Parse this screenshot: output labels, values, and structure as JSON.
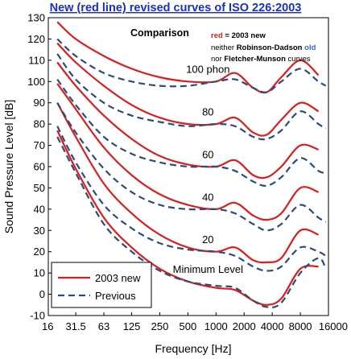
{
  "title": "New (red line) revised curves of ISO 226:2003",
  "comparison_box": {
    "heading": "Comparison",
    "line1_red": "red",
    "line1_rest": " = 2003 new",
    "line2_prefix": "neither ",
    "line2_bold": "Robinson-Dadson ",
    "line2_blue": "old",
    "line3_prefix": "nor ",
    "line3_bold": "Fletcher-Munson",
    "line3_suffix": " curves"
  },
  "colors": {
    "new": "#e11b1b",
    "old": "#2b4a7e",
    "title": "#1a2fc8",
    "comparison_red": "#e11b1b",
    "comparison_blue": "#3366cc",
    "frame": "#000000"
  },
  "legend": {
    "entries": [
      {
        "label": "2003 new",
        "style": "solid-red"
      },
      {
        "label": "Previous",
        "style": "dashed-blue"
      }
    ]
  },
  "chart_data": {
    "type": "line",
    "title": "New (red line) revised curves of ISO 226:2003",
    "xlabel": "Frequency [Hz]",
    "ylabel": "Sound Pressure Level [dB]",
    "x_scale": "log",
    "x_ticks": [
      16,
      31.5,
      63,
      125,
      250,
      500,
      1000,
      2000,
      4000,
      8000,
      16000
    ],
    "x_tick_labels": [
      "16",
      "31.5",
      "63",
      "125",
      "250",
      "500",
      "1000",
      "2000",
      "4000",
      "8000",
      "16000"
    ],
    "ylim": [
      -10,
      130
    ],
    "y_ticks": [
      -10,
      0,
      10,
      20,
      30,
      40,
      50,
      60,
      70,
      80,
      90,
      100,
      110,
      120,
      130
    ],
    "grid": false,
    "curve_labels": [
      {
        "text": "100 phon",
        "x": 1000,
        "y": 104
      },
      {
        "text": "80",
        "x": 1000,
        "y": 84
      },
      {
        "text": "60",
        "x": 1000,
        "y": 64
      },
      {
        "text": "40",
        "x": 1000,
        "y": 44
      },
      {
        "text": "20",
        "x": 1000,
        "y": 24
      },
      {
        "text": "Minimum Level",
        "x": 1000,
        "y": 10
      }
    ],
    "series": [
      {
        "name": "2003 new",
        "phon": 100,
        "x": [
          20,
          31.5,
          63,
          125,
          250,
          500,
          1000,
          1600,
          2500,
          3500,
          5000,
          8000,
          12500
        ],
        "y": [
          128,
          120,
          112,
          106,
          102,
          100,
          100,
          104,
          97,
          95,
          102,
          110,
          103
        ]
      },
      {
        "name": "2003 new",
        "phon": 80,
        "x": [
          20,
          31.5,
          63,
          125,
          250,
          500,
          1000,
          1600,
          2500,
          3500,
          5000,
          8000,
          12500
        ],
        "y": [
          118,
          109,
          98,
          89,
          83,
          80,
          80,
          83,
          76,
          75,
          82,
          90,
          86
        ]
      },
      {
        "name": "2003 new",
        "phon": 60,
        "x": [
          20,
          31.5,
          63,
          125,
          250,
          500,
          1000,
          1600,
          2500,
          3500,
          5000,
          8000,
          12500
        ],
        "y": [
          109,
          98,
          84,
          73,
          65,
          61,
          60,
          63,
          56,
          55,
          60,
          70,
          68
        ]
      },
      {
        "name": "2003 new",
        "phon": 40,
        "x": [
          20,
          31.5,
          63,
          125,
          250,
          500,
          1000,
          1600,
          2500,
          3500,
          5000,
          8000,
          12500
        ],
        "y": [
          99,
          87,
          69,
          56,
          47,
          42,
          40,
          43,
          37,
          35,
          38,
          50,
          48
        ]
      },
      {
        "name": "2003 new",
        "phon": 20,
        "x": [
          20,
          31.5,
          63,
          125,
          250,
          500,
          1000,
          1600,
          2500,
          3500,
          5000,
          8000,
          12500
        ],
        "y": [
          90,
          74,
          52,
          38,
          28,
          22,
          20,
          22,
          16,
          15,
          17,
          30,
          28
        ]
      },
      {
        "name": "2003 new",
        "phon": 0,
        "x": [
          20,
          31.5,
          63,
          125,
          250,
          500,
          1000,
          1600,
          2500,
          3500,
          5000,
          8000,
          12500
        ],
        "y": [
          77,
          59,
          36,
          22,
          12,
          6,
          3,
          2,
          -3,
          -5,
          -2,
          12,
          13
        ]
      },
      {
        "name": "Previous",
        "phon": 100,
        "x": [
          20,
          31.5,
          63,
          125,
          250,
          500,
          1000,
          1600,
          2500,
          3500,
          5000,
          8000,
          12500,
          15000
        ],
        "y": [
          120,
          112,
          104,
          100,
          98,
          98,
          100,
          101,
          97,
          95,
          100,
          106,
          100,
          98
        ]
      },
      {
        "name": "Previous",
        "phon": 80,
        "x": [
          20,
          31.5,
          63,
          125,
          250,
          500,
          1000,
          1600,
          2500,
          3500,
          5000,
          8000,
          12500,
          15000
        ],
        "y": [
          113,
          101,
          90,
          84,
          81,
          79,
          80,
          79,
          74,
          73,
          77,
          86,
          80,
          78
        ]
      },
      {
        "name": "Previous",
        "phon": 60,
        "x": [
          20,
          31.5,
          63,
          125,
          250,
          500,
          1000,
          1600,
          2500,
          3500,
          5000,
          8000,
          12500,
          15000
        ],
        "y": [
          101,
          89,
          74,
          66,
          62,
          60,
          60,
          58,
          53,
          51,
          55,
          64,
          58,
          57
        ]
      },
      {
        "name": "Previous",
        "phon": 40,
        "x": [
          20,
          31.5,
          63,
          125,
          250,
          500,
          1000,
          1600,
          2500,
          3500,
          5000,
          8000,
          12500,
          15000
        ],
        "y": [
          90,
          76,
          59,
          48,
          42,
          40,
          40,
          38,
          33,
          30,
          33,
          42,
          36,
          34
        ]
      },
      {
        "name": "Previous",
        "phon": 20,
        "x": [
          20,
          31.5,
          63,
          125,
          250,
          500,
          1000,
          1600,
          2500,
          3500,
          5000,
          8000,
          12500,
          15000
        ],
        "y": [
          79,
          62,
          42,
          31,
          24,
          21,
          20,
          18,
          13,
          11,
          13,
          22,
          20,
          18
        ]
      },
      {
        "name": "Previous",
        "phon": 0,
        "x": [
          20,
          31.5,
          63,
          125,
          250,
          500,
          1000,
          1600,
          2500,
          3500,
          5000,
          8000,
          12500,
          15000
        ],
        "y": [
          74,
          57,
          33,
          20,
          11,
          6,
          4,
          3,
          -3,
          -6,
          -4,
          10,
          17,
          12
        ]
      }
    ]
  }
}
